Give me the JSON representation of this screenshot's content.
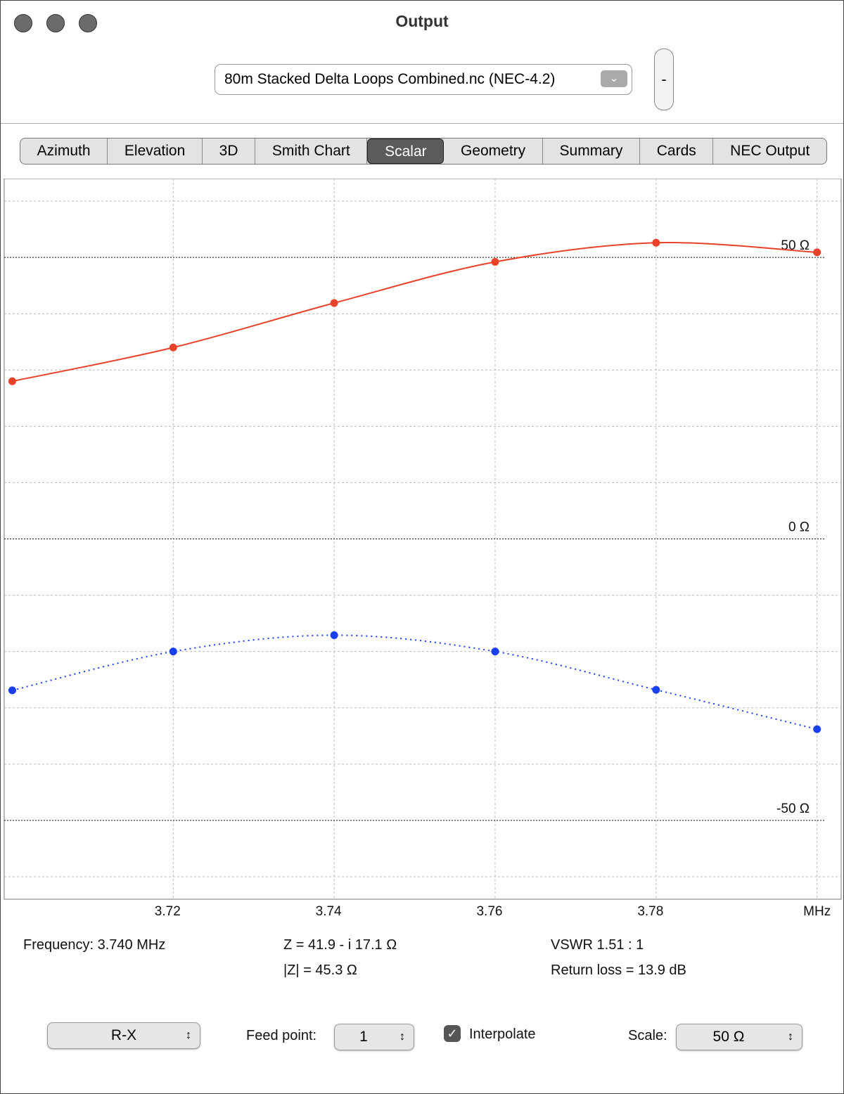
{
  "window": {
    "title": "Output"
  },
  "file_popup": "80m Stacked Delta Loops Combined.nc (NEC-4.2)",
  "stepper": "-",
  "tabs": [
    {
      "label": "Azimuth"
    },
    {
      "label": "Elevation"
    },
    {
      "label": "3D"
    },
    {
      "label": "Smith Chart"
    },
    {
      "label": "Scalar",
      "selected": true
    },
    {
      "label": "Geometry"
    },
    {
      "label": "Summary"
    },
    {
      "label": "Cards"
    },
    {
      "label": "NEC Output"
    }
  ],
  "chart_data": {
    "type": "line",
    "x": [
      3.7,
      3.72,
      3.74,
      3.76,
      3.78,
      3.8
    ],
    "series": [
      {
        "color": "#e8432a",
        "values": [
          28.0,
          34.0,
          41.9,
          49.2,
          52.6,
          50.9
        ]
      },
      {
        "color": "#1a3ff0",
        "values": [
          -26.9,
          -20.0,
          -17.1,
          -20.0,
          -26.8,
          -33.8
        ],
        "dotted": true
      }
    ],
    "xlim": [
      3.699,
      3.803
    ],
    "xticks": [
      3.72,
      3.74,
      3.76,
      3.78,
      {
        "value": 3.8,
        "label": "MHz"
      }
    ],
    "ylim": [
      -64,
      64
    ],
    "yticks": [
      {
        "value": 50,
        "label": "50 Ω"
      },
      {
        "value": 0,
        "label": "0 Ω"
      },
      {
        "value": -50,
        "label": "-50 Ω"
      }
    ],
    "minor_yticks": [
      60,
      40,
      30,
      20,
      10,
      -10,
      -20,
      -30,
      -40,
      -60
    ],
    "grid": true
  },
  "status": {
    "frequency": "Frequency: 3.740 MHz",
    "z": "Z = 41.9 - i 17.1 Ω",
    "abs_z": "|Z| = 45.3 Ω",
    "vswr": "VSWR 1.51 : 1",
    "return_loss": "Return loss = 13.9 dB"
  },
  "controls": {
    "mode": "R-X",
    "feed_label": "Feed point:",
    "feed_value": "1",
    "interpolate": "Interpolate",
    "interpolate_checked": true,
    "scale_label": "Scale:",
    "scale_value": "50 Ω"
  }
}
